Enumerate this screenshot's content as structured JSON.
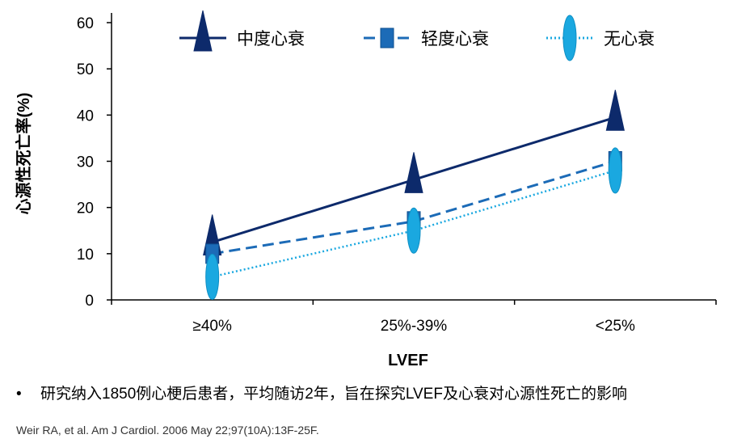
{
  "chart_data": {
    "type": "line",
    "title": "",
    "xlabel": "LVEF",
    "ylabel": "心源性死亡率(%)",
    "categories": [
      "≥40%",
      "25%-39%",
      "<25%"
    ],
    "ylim": [
      0,
      60
    ],
    "yticks": [
      0,
      10,
      20,
      30,
      40,
      50,
      60
    ],
    "legend_position": "top",
    "series": [
      {
        "name": "中度心衰",
        "values": [
          12.5,
          26,
          39.5
        ],
        "color": "#0d2a6b",
        "line": "solid",
        "marker": "triangle"
      },
      {
        "name": "轻度心衰",
        "values": [
          10,
          17,
          30
        ],
        "color": "#1c6bb7",
        "line": "dashed",
        "marker": "square"
      },
      {
        "name": "无心衰",
        "values": [
          5,
          15,
          28
        ],
        "color": "#1aa8e0",
        "line": "dotted",
        "marker": "ellipse"
      }
    ]
  },
  "footnote": {
    "bullet": "•",
    "text": "研究纳入1850例心梗后患者，平均随访2年，旨在探究LVEF及心衰对心源性死亡的影响"
  },
  "reference": "Weir RA, et al. Am J Cardiol. 2006 May 22;97(10A):13F-25F."
}
